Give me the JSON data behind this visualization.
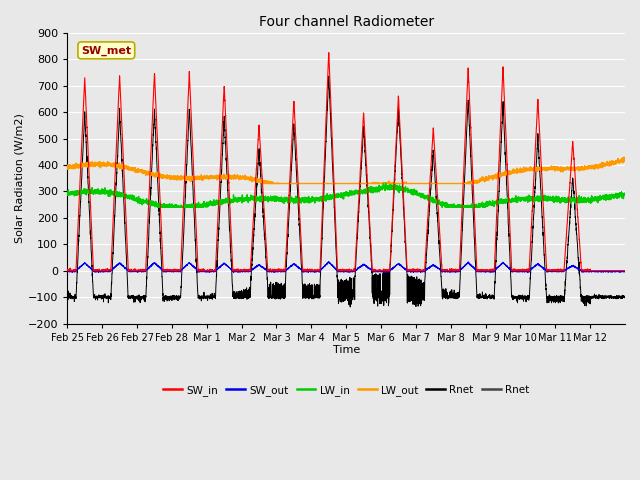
{
  "title": "Four channel Radiometer",
  "xlabel": "Time",
  "ylabel": "Solar Radiation (W/m2)",
  "ylim": [
    -200,
    900
  ],
  "yticks": [
    -200,
    -100,
    0,
    100,
    200,
    300,
    400,
    500,
    600,
    700,
    800,
    900
  ],
  "plot_bg_color": "#e8e8e8",
  "grid_color": "#ffffff",
  "annotation_text": "SW_met",
  "annotation_bg": "#ffffcc",
  "annotation_border": "#bbaa00",
  "annotation_text_color": "#990000",
  "num_days": 16,
  "x_tick_labels": [
    "Feb 25",
    "Feb 26",
    "Feb 27",
    "Feb 28",
    "Mar 1",
    "Mar 2",
    "Mar 3",
    "Mar 4",
    "Mar 5",
    "Mar 6",
    "Mar 7",
    "Mar 8",
    "Mar 9",
    "Mar 10",
    "Mar 11",
    "Mar 12"
  ],
  "sw_in_peaks": [
    730,
    740,
    750,
    750,
    700,
    550,
    645,
    830,
    600,
    660,
    540,
    770,
    770,
    650,
    490,
    0
  ],
  "lw_in_base": 270,
  "lw_out_base": 350,
  "sw_out_scale": 0.04,
  "colors": {
    "SW_in": "#ff0000",
    "SW_out": "#0000ee",
    "LW_in": "#00cc00",
    "LW_out": "#ff9900",
    "Rnet": "#000000"
  },
  "legend_entries": [
    "SW_in",
    "SW_out",
    "LW_in",
    "LW_out",
    "Rnet",
    "Rnet"
  ],
  "legend_colors": [
    "#ff0000",
    "#0000ee",
    "#00cc00",
    "#ff9900",
    "#000000",
    "#444444"
  ]
}
